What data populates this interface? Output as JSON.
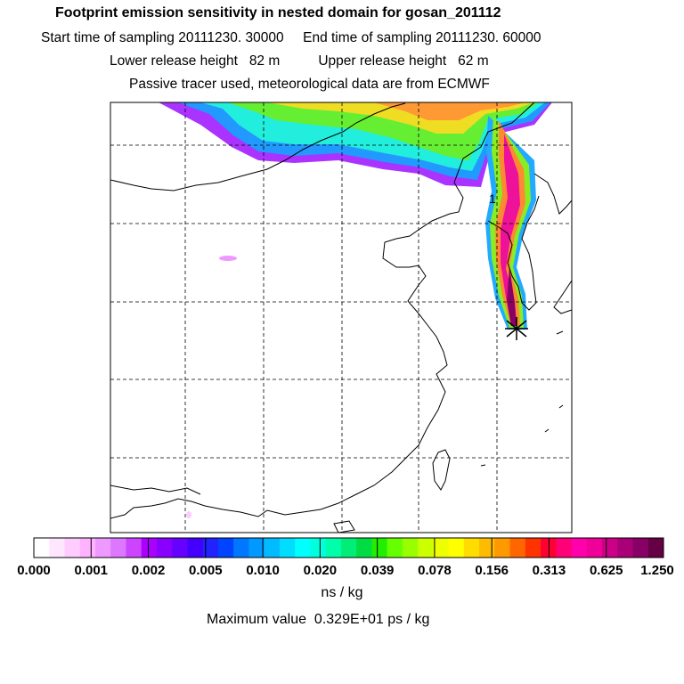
{
  "header": {
    "title": "Footprint emission sensitivity in nested domain for gosan_201112",
    "line2": "Start time of sampling 20111230. 30000     End time of sampling 20111230. 60000",
    "line3": "Lower release height   82 m          Upper release height   62 m",
    "line4": "Passive tracer used, meteorological data are from ECMWF"
  },
  "map": {
    "receptor_label": "1",
    "receptor_marker_icon": "star-icon"
  },
  "colorbar": {
    "tick_labels": [
      "0.000",
      "0.001",
      "0.002",
      "0.005",
      "0.010",
      "0.020",
      "0.039",
      "0.078",
      "0.156",
      "0.313",
      "0.625",
      "1.250"
    ],
    "colors": [
      "#ffffff",
      "#ffe6ff",
      "#ffccff",
      "#ffb3ff",
      "#ee99ff",
      "#dd77ff",
      "#cc44ff",
      "#aa00ff",
      "#8800ff",
      "#6600ff",
      "#4400ff",
      "#2222ff",
      "#0044ff",
      "#0077ff",
      "#0099ff",
      "#00bbff",
      "#00ddff",
      "#00ffff",
      "#00ffdd",
      "#00ffaa",
      "#00ee77",
      "#00dd44",
      "#22ee00",
      "#66ff00",
      "#99ff00",
      "#ccff00",
      "#eeff00",
      "#ffff00",
      "#ffdd00",
      "#ffbb00",
      "#ff9900",
      "#ff6600",
      "#ff3300",
      "#ff0033",
      "#ff0077",
      "#ff00aa",
      "#ee0099",
      "#cc0088",
      "#aa0077",
      "#880066",
      "#660044"
    ],
    "units": "ns / kg",
    "max_value_text": "Maximum value  0.329E+01 ps / kg"
  }
}
